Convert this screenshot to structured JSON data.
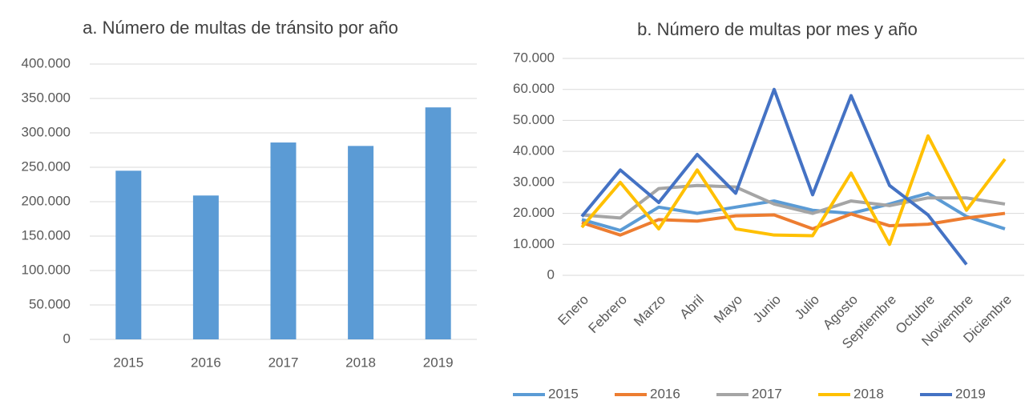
{
  "chart_data": [
    {
      "type": "bar",
      "title": "a. Número de multas de tránsito por año",
      "categories": [
        "2015",
        "2016",
        "2017",
        "2018",
        "2019"
      ],
      "values": [
        245000,
        209000,
        286000,
        281000,
        337000
      ],
      "color": "#5b9bd5",
      "ylim": [
        0,
        400000
      ],
      "yticks": [
        0,
        {
          "value": 50000,
          "label": "50.000"
        },
        {
          "value": 100000,
          "label": "100.000"
        },
        {
          "value": 150000,
          "label": "150.000"
        },
        {
          "value": 200000,
          "label": "200.000"
        },
        {
          "value": 250000,
          "label": "250.000"
        },
        {
          "value": 300000,
          "label": "300.000"
        },
        {
          "value": 350000,
          "label": "350.000"
        },
        {
          "value": 400000,
          "label": "400.000"
        }
      ]
    },
    {
      "type": "line",
      "title": "b. Número de multas por mes y año",
      "categories": [
        "Enero",
        "Febrero",
        "Marzo",
        "Abril",
        "Mayo",
        "Junio",
        "Julio",
        "Agosto",
        "Septiembre",
        "Octubre",
        "Noviembre",
        "Diciembre"
      ],
      "series": [
        {
          "name": "2015",
          "color": "#5b9bd5",
          "values": [
            18000,
            14500,
            22000,
            20000,
            22000,
            24000,
            21000,
            20000,
            23000,
            26500,
            19000,
            15000
          ]
        },
        {
          "name": "2016",
          "color": "#ed7d31",
          "values": [
            17000,
            13000,
            18000,
            17500,
            19200,
            19500,
            15000,
            19800,
            16000,
            16500,
            18500,
            20000
          ]
        },
        {
          "name": "2017",
          "color": "#a5a5a5",
          "values": [
            19500,
            18500,
            28000,
            29000,
            28500,
            23000,
            20000,
            24000,
            22500,
            25000,
            25000,
            23000
          ]
        },
        {
          "name": "2018",
          "color": "#ffc000",
          "values": [
            15500,
            30000,
            15000,
            34000,
            15000,
            13000,
            12800,
            33000,
            10000,
            45000,
            21000,
            37500
          ]
        },
        {
          "name": "2019",
          "color": "#4472c4",
          "values": [
            19000,
            34000,
            23500,
            39000,
            26500,
            60000,
            26000,
            58000,
            29000,
            19500,
            3500,
            null
          ]
        }
      ],
      "ylim": [
        0,
        70000
      ],
      "yticks": [
        0,
        {
          "value": 10000,
          "label": "10.000"
        },
        {
          "value": 20000,
          "label": "20.000"
        },
        {
          "value": 30000,
          "label": "30.000"
        },
        {
          "value": 40000,
          "label": "40.000"
        },
        {
          "value": 50000,
          "label": "50.000"
        },
        {
          "value": 60000,
          "label": "60.000"
        },
        {
          "value": 70000,
          "label": "70.000"
        }
      ]
    }
  ]
}
